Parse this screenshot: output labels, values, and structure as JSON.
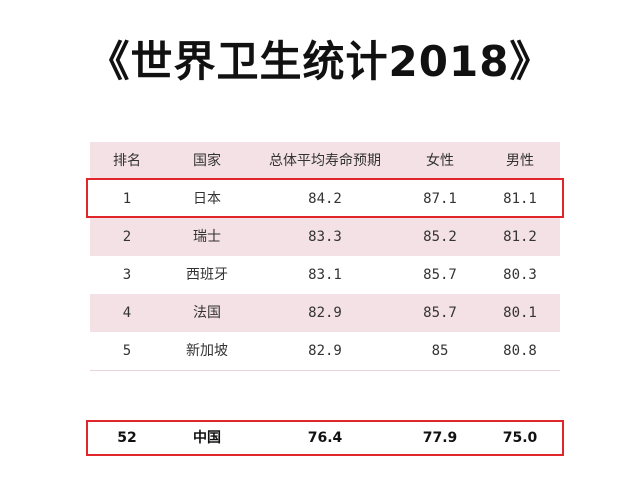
{
  "title": "《世界卫生统计2018》",
  "table": {
    "headers": [
      "排名",
      "国家",
      "总体平均寿命预期",
      "女性",
      "男性"
    ],
    "rows": [
      [
        "1",
        "日本",
        "84.2",
        "87.1",
        "81.1"
      ],
      [
        "2",
        "瑞士",
        "83.3",
        "85.2",
        "81.2"
      ],
      [
        "3",
        "西班牙",
        "83.1",
        "85.7",
        "80.3"
      ],
      [
        "4",
        "法国",
        "82.9",
        "85.7",
        "80.1"
      ],
      [
        "5",
        "新加坡",
        "82.9",
        "85",
        "80.8"
      ]
    ],
    "china_row": [
      "52",
      "中国",
      "76.4",
      "77.9",
      "75.0"
    ]
  },
  "colors": {
    "row_pink": "#f4e1e6",
    "highlight_border": "#e0262b"
  }
}
